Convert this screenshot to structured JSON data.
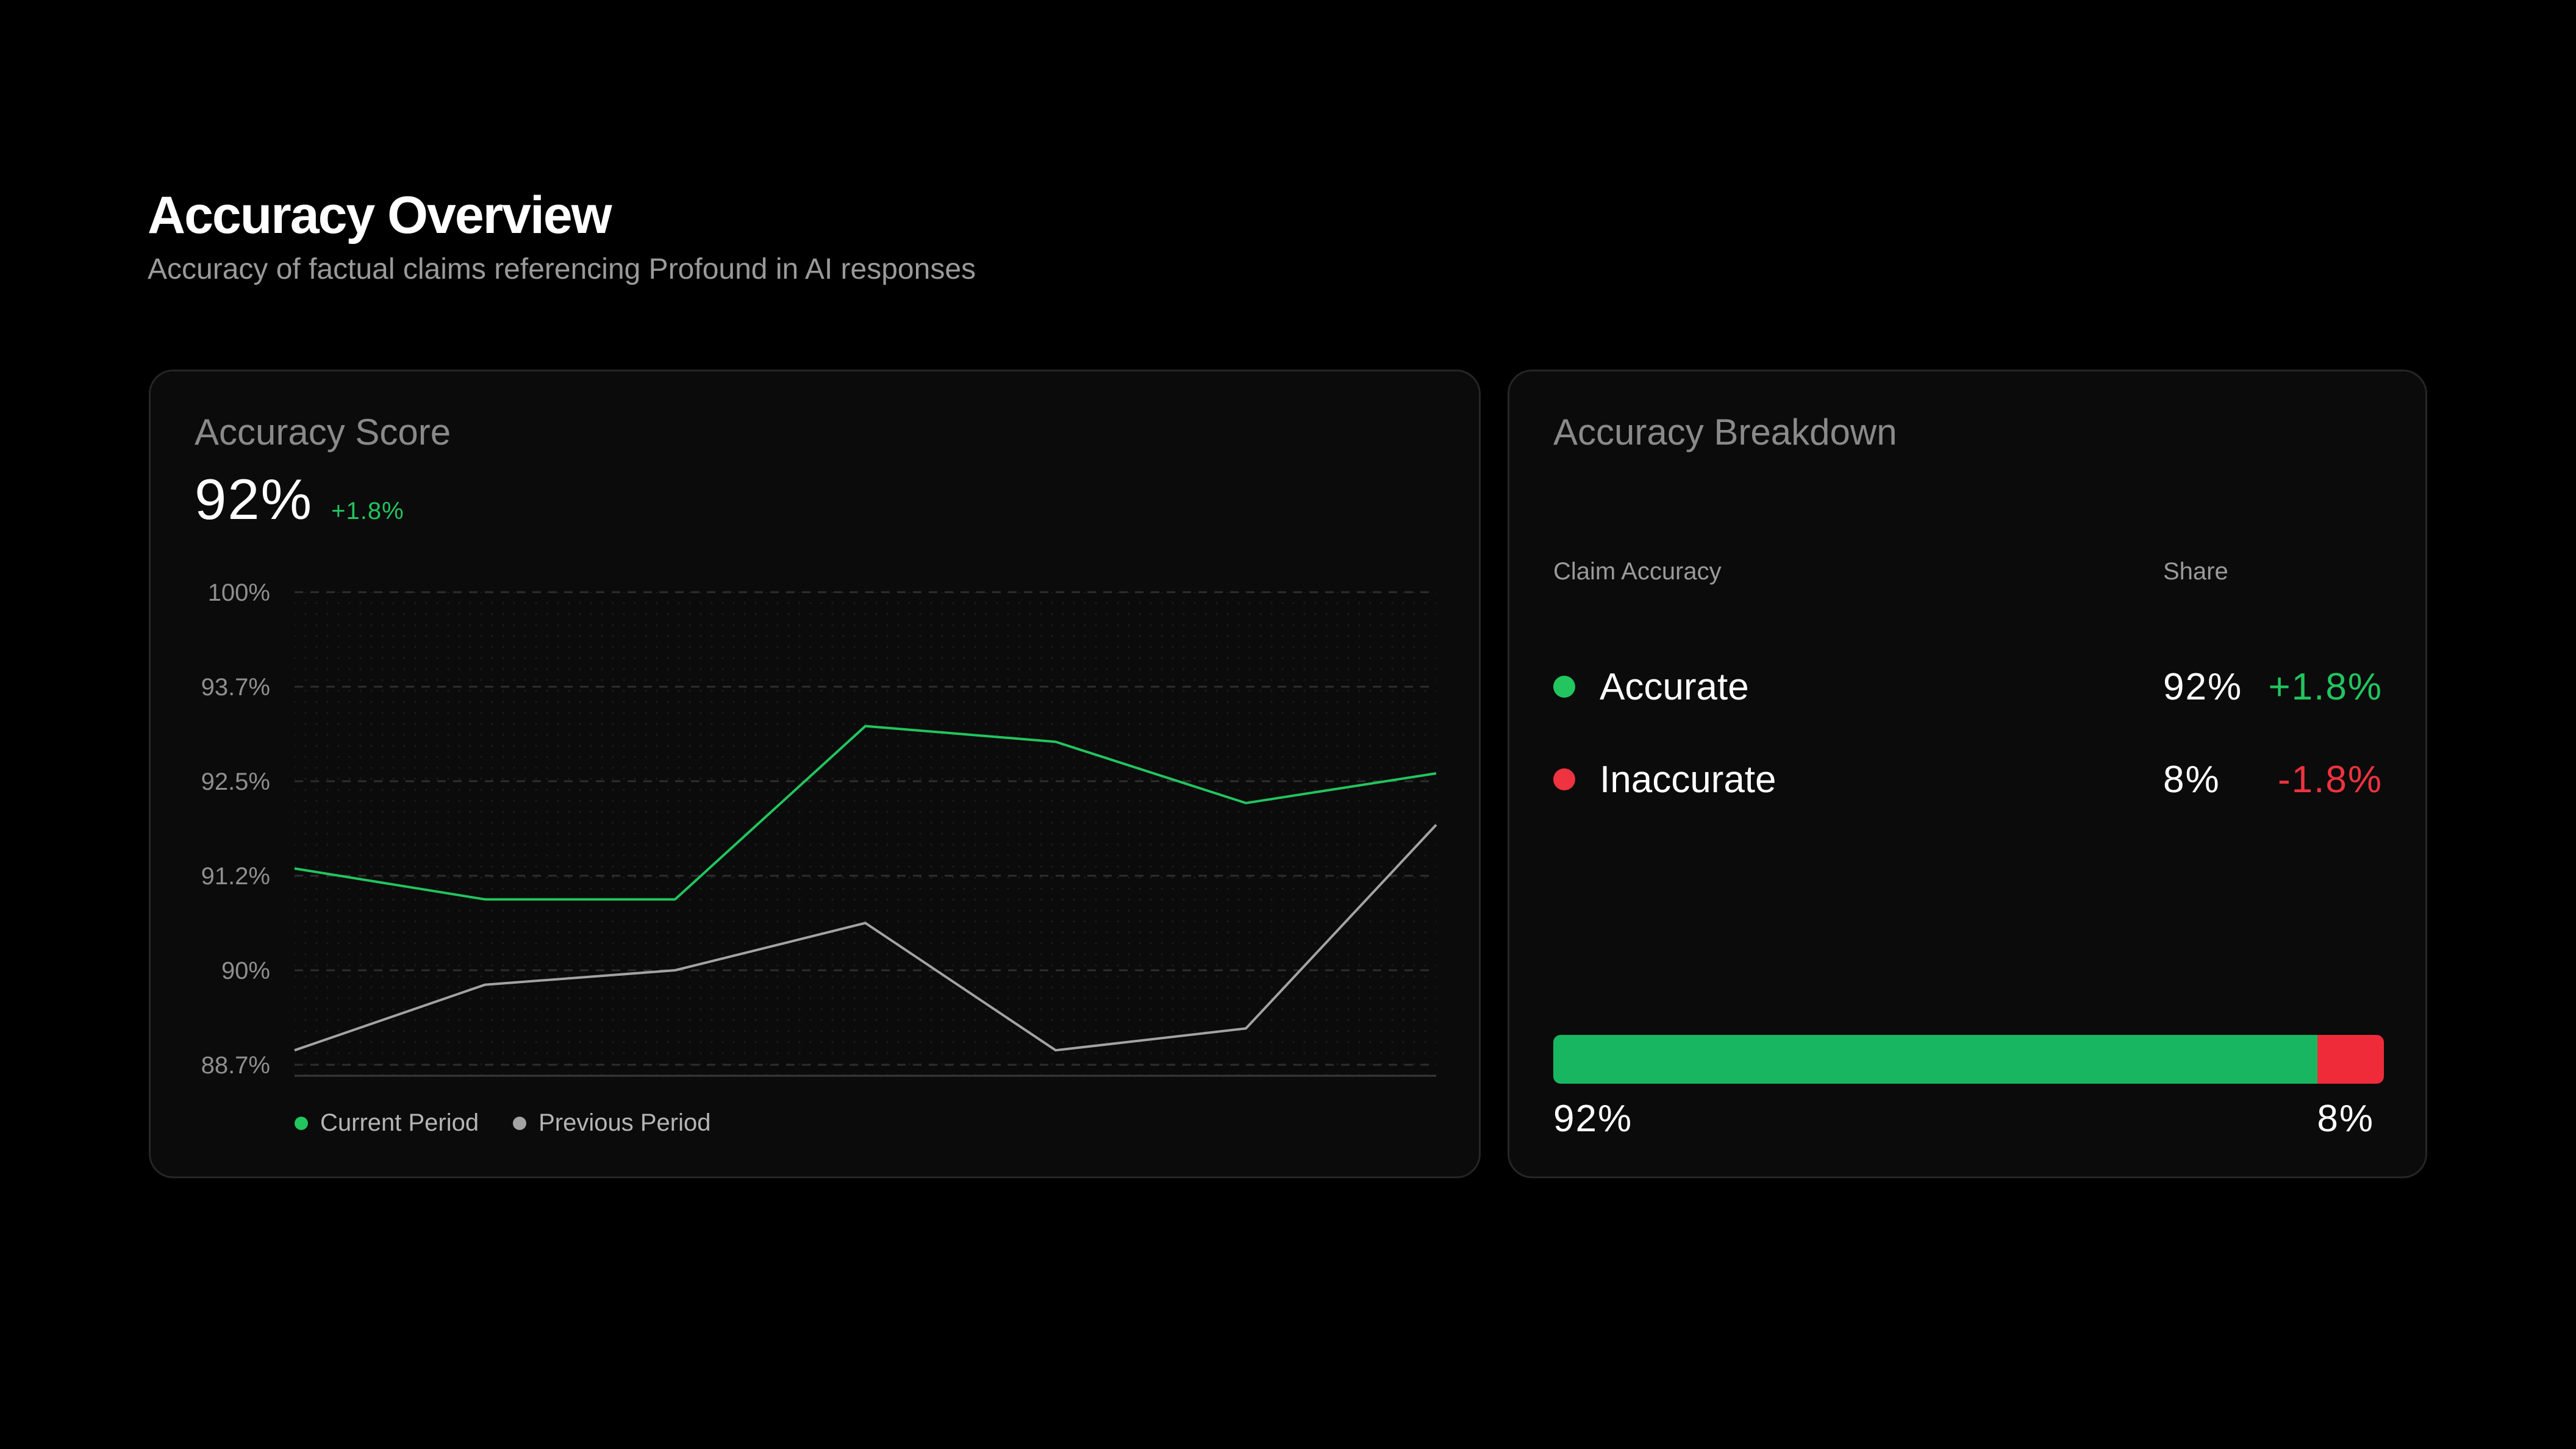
{
  "header": {
    "title": "Accuracy Overview",
    "subtitle": "Accuracy of factual claims referencing Profound in AI responses"
  },
  "score_card": {
    "title": "Accuracy Score",
    "value": "92%",
    "delta": "+1.8%",
    "delta_color": "#22c55e"
  },
  "chart_data": {
    "type": "line",
    "title": "",
    "xlabel": "",
    "ylabel": "",
    "y_tick_labels": [
      "100%",
      "93.7%",
      "92.5%",
      "91.2%",
      "90%",
      "88.7%"
    ],
    "ylim_note": "non-linear tick spacing as printed",
    "x": [
      1,
      2,
      3,
      4,
      5,
      6,
      7
    ],
    "series": [
      {
        "name": "Current Period",
        "color": "#22c55e",
        "values": [
          91.3,
          90.9,
          90.9,
          93.2,
          93.0,
          92.2,
          92.6
        ]
      },
      {
        "name": "Previous Period",
        "color": "#a3a3a3",
        "values": [
          88.9,
          89.8,
          90.0,
          90.6,
          88.9,
          89.2,
          91.9
        ]
      }
    ],
    "grid": true,
    "legend_position": "bottom-left"
  },
  "breakdown_card": {
    "title": "Accuracy Breakdown",
    "col_claim": "Claim Accuracy",
    "col_share": "Share",
    "rows": [
      {
        "label": "Accurate",
        "share": "92%",
        "delta": "+1.8%",
        "color": "#22c55e"
      },
      {
        "label": "Inaccurate",
        "share": "8%",
        "delta": "-1.8%",
        "color": "#ef3340"
      }
    ],
    "bar": {
      "accurate_fraction": 0.92,
      "inaccurate_fraction": 0.08,
      "accurate_color": "#19b661",
      "inaccurate_color": "#ef2b3a",
      "left_label": "92%",
      "right_label": "8%"
    }
  }
}
